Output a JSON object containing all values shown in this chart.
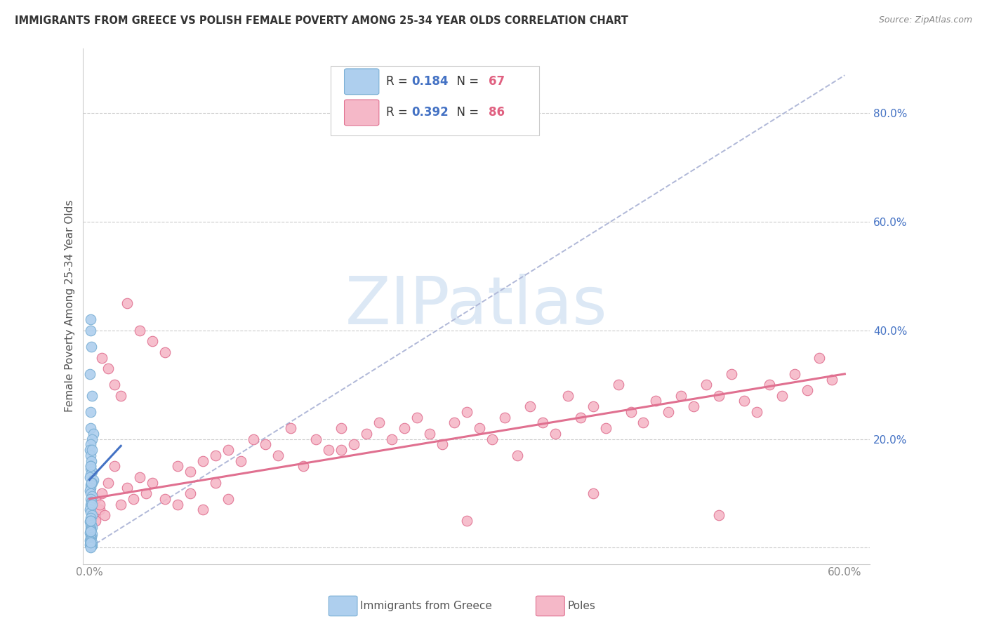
{
  "title": "IMMIGRANTS FROM GREECE VS POLISH FEMALE POVERTY AMONG 25-34 YEAR OLDS CORRELATION CHART",
  "source": "Source: ZipAtlas.com",
  "ylabel": "Female Poverty Among 25-34 Year Olds",
  "xlim": [
    -0.005,
    0.62
  ],
  "ylim": [
    -0.03,
    0.92
  ],
  "background_color": "#ffffff",
  "watermark_text": "ZIPatlas",
  "watermark_color": "#dce8f5",
  "greece_fill": "#aecfee",
  "greece_edge": "#7aafd4",
  "poles_fill": "#f5b8c8",
  "poles_edge": "#e07090",
  "greece_line_color": "#4472c4",
  "poles_line_color": "#e07090",
  "dashed_line_color": "#b0b8d8",
  "tick_color_right": "#4472c4",
  "tick_color_bottom": "#888888",
  "legend_R_color": "#4472c4",
  "legend_N_color": "#e06080",
  "greece_R": 0.184,
  "greece_N": 67,
  "poles_R": 0.392,
  "poles_N": 86,
  "ytick_positions": [
    0.0,
    0.2,
    0.4,
    0.6,
    0.8
  ],
  "ytick_labels": [
    "",
    "20.0%",
    "40.0%",
    "60.0%",
    "80.0%"
  ],
  "xtick_positions": [
    0.0,
    0.1,
    0.2,
    0.3,
    0.4,
    0.5,
    0.6
  ],
  "xtick_labels": [
    "0.0%",
    "",
    "",
    "",
    "",
    "",
    "60.0%"
  ],
  "greece_x": [
    0.0008,
    0.001,
    0.0015,
    0.0005,
    0.002,
    0.001,
    0.0008,
    0.003,
    0.002,
    0.001,
    0.0005,
    0.001,
    0.0015,
    0.001,
    0.0008,
    0.002,
    0.001,
    0.0005,
    0.003,
    0.002,
    0.001,
    0.0008,
    0.0005,
    0.001,
    0.002,
    0.001,
    0.0015,
    0.001,
    0.0008,
    0.0005,
    0.001,
    0.002,
    0.001,
    0.0008,
    0.0005,
    0.001,
    0.0015,
    0.001,
    0.002,
    0.001,
    0.0008,
    0.001,
    0.0005,
    0.002,
    0.001,
    0.0015,
    0.001,
    0.0008,
    0.0005,
    0.001,
    0.002,
    0.001,
    0.0008,
    0.001,
    0.0005,
    0.002,
    0.001,
    0.0015,
    0.001,
    0.0008,
    0.002,
    0.001,
    0.0015,
    0.002,
    0.001,
    0.0008,
    0.001
  ],
  "greece_y": [
    0.42,
    0.4,
    0.37,
    0.32,
    0.28,
    0.25,
    0.22,
    0.21,
    0.2,
    0.19,
    0.18,
    0.17,
    0.16,
    0.15,
    0.145,
    0.14,
    0.135,
    0.13,
    0.125,
    0.12,
    0.115,
    0.11,
    0.105,
    0.1,
    0.095,
    0.09,
    0.085,
    0.08,
    0.075,
    0.07,
    0.065,
    0.06,
    0.055,
    0.05,
    0.048,
    0.045,
    0.042,
    0.04,
    0.038,
    0.035,
    0.033,
    0.03,
    0.028,
    0.025,
    0.022,
    0.02,
    0.018,
    0.016,
    0.014,
    0.012,
    0.01,
    0.009,
    0.008,
    0.007,
    0.006,
    0.005,
    0.004,
    0.003,
    0.002,
    0.001,
    0.18,
    0.15,
    0.12,
    0.08,
    0.05,
    0.03,
    0.01
  ],
  "poles_x": [
    0.003,
    0.005,
    0.008,
    0.01,
    0.015,
    0.02,
    0.025,
    0.03,
    0.035,
    0.04,
    0.045,
    0.05,
    0.06,
    0.07,
    0.08,
    0.09,
    0.1,
    0.11,
    0.12,
    0.13,
    0.14,
    0.15,
    0.16,
    0.17,
    0.18,
    0.19,
    0.2,
    0.21,
    0.22,
    0.23,
    0.24,
    0.25,
    0.26,
    0.27,
    0.28,
    0.29,
    0.3,
    0.31,
    0.32,
    0.33,
    0.34,
    0.35,
    0.36,
    0.37,
    0.38,
    0.39,
    0.4,
    0.41,
    0.42,
    0.43,
    0.44,
    0.45,
    0.46,
    0.47,
    0.48,
    0.49,
    0.5,
    0.51,
    0.52,
    0.53,
    0.54,
    0.55,
    0.56,
    0.57,
    0.58,
    0.59,
    0.01,
    0.015,
    0.02,
    0.025,
    0.03,
    0.04,
    0.05,
    0.06,
    0.005,
    0.008,
    0.012,
    0.07,
    0.08,
    0.09,
    0.1,
    0.11,
    0.2,
    0.3,
    0.4,
    0.5
  ],
  "poles_y": [
    0.06,
    0.09,
    0.07,
    0.1,
    0.12,
    0.15,
    0.08,
    0.11,
    0.09,
    0.13,
    0.1,
    0.12,
    0.09,
    0.15,
    0.14,
    0.16,
    0.17,
    0.18,
    0.16,
    0.2,
    0.19,
    0.17,
    0.22,
    0.15,
    0.2,
    0.18,
    0.22,
    0.19,
    0.21,
    0.23,
    0.2,
    0.22,
    0.24,
    0.21,
    0.19,
    0.23,
    0.25,
    0.22,
    0.2,
    0.24,
    0.17,
    0.26,
    0.23,
    0.21,
    0.28,
    0.24,
    0.26,
    0.22,
    0.3,
    0.25,
    0.23,
    0.27,
    0.25,
    0.28,
    0.26,
    0.3,
    0.28,
    0.32,
    0.27,
    0.25,
    0.3,
    0.28,
    0.32,
    0.29,
    0.35,
    0.31,
    0.35,
    0.33,
    0.3,
    0.28,
    0.45,
    0.4,
    0.38,
    0.36,
    0.05,
    0.08,
    0.06,
    0.08,
    0.1,
    0.07,
    0.12,
    0.09,
    0.18,
    0.05,
    0.1,
    0.06
  ]
}
